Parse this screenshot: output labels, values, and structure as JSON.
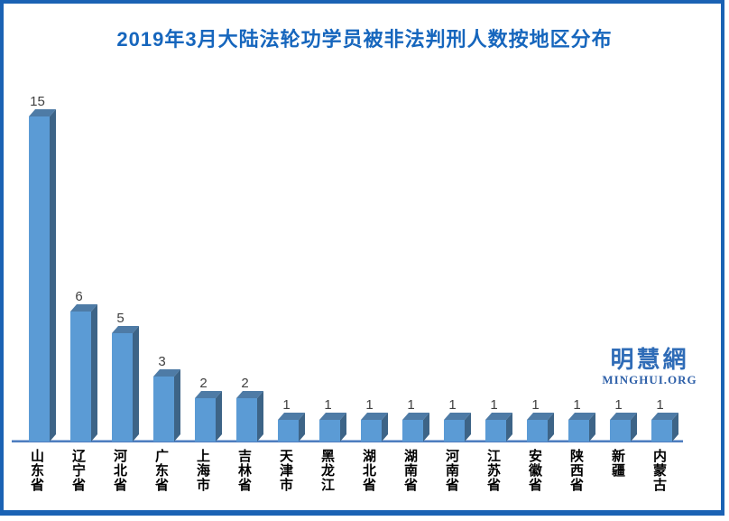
{
  "page": {
    "title": "2019年3月大陆法轮功学员被非法判刑人数按地区分布"
  },
  "watermark": {
    "cn": "明慧網",
    "en": "MINGHUI.ORG"
  },
  "chart_data": {
    "type": "bar",
    "title": "2019年3月大陆法轮功学员被非法判刑人数按地区分布",
    "categories": [
      "山东省",
      "辽宁省",
      "河北省",
      "广东省",
      "上海市",
      "吉林省",
      "天津市",
      "黑龙江",
      "湖北省",
      "湖南省",
      "河南省",
      "江苏省",
      "安徽省",
      "陕西省",
      "新疆",
      "内蒙古"
    ],
    "values": [
      15,
      6,
      5,
      3,
      2,
      2,
      1,
      1,
      1,
      1,
      1,
      1,
      1,
      1,
      1,
      1
    ],
    "xlabel": "",
    "ylabel": "",
    "ylim": [
      0,
      15
    ],
    "grid": false,
    "legend": "none",
    "value_labels_shown": true,
    "style_3d": true,
    "colors": {
      "bar_front": "#5b9bd5",
      "bar_top": "#4e7ba6",
      "bar_side": "#3d6487",
      "axis_line": "#4d7dbf",
      "axis_line_highlight": "#9db8de",
      "title_text": "#1666bd",
      "value_label_text": "#404040",
      "category_label_text": "#000000",
      "border": "#1a62b4",
      "watermark_cn": "#2f6cb7",
      "watermark_en": "#2d5fa8"
    }
  }
}
